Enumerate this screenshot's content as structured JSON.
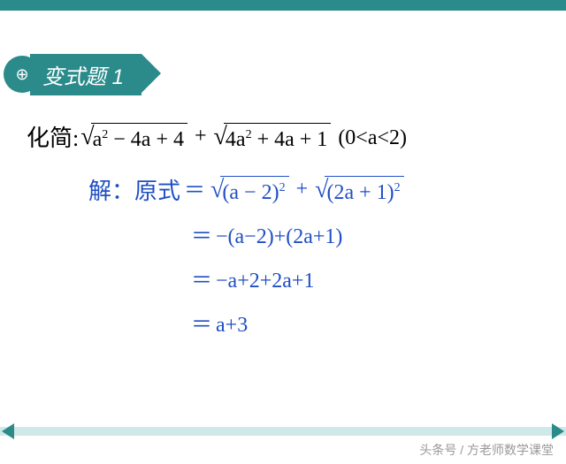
{
  "colors": {
    "teal": "#2b8a8a",
    "blue": "#1f4fc4",
    "black": "#000000",
    "nav_bg": "#cfe8e8",
    "watermark": "#999999"
  },
  "title": {
    "icon_glyph": "⊕",
    "text": "变式题 1"
  },
  "problem": {
    "label": "化简:",
    "expr1_inner": "a² − 4a + 4",
    "plus": " + ",
    "expr2_inner": "4a² + 4a + 1",
    "condition": "(0<a<2)"
  },
  "solution": {
    "label": "解：原式",
    "eq": "＝",
    "step1_sqrt1": "(a − 2)²",
    "step1_plus": " + ",
    "step1_sqrt2": "(2a + 1)²",
    "step2": "−(a−2)+(2a+1)",
    "step3": "−a+2+2a+1",
    "step4": "a+3"
  },
  "watermark": "头条号 / 方老师数学课堂"
}
